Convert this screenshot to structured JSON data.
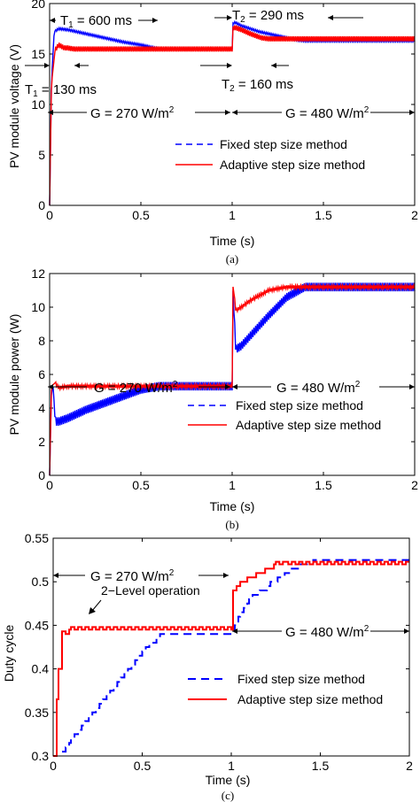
{
  "chart_data": [
    {
      "type": "line",
      "panel_caption": "(a)",
      "xlabel": "Time (s)",
      "ylabel": "PV module voltage (V)",
      "xlim": [
        0,
        2
      ],
      "ylim": [
        0,
        20
      ],
      "xticks": [
        "0",
        "0.5",
        "1",
        "1.5",
        "2"
      ],
      "yticks": [
        "0",
        "5",
        "10",
        "15",
        "20"
      ],
      "grid": false,
      "legend_position": "center-right",
      "series": [
        {
          "name": "Fixed step size method",
          "color": "#0000ff",
          "style": "dashed",
          "x": [
            0,
            0.01,
            0.025,
            0.05,
            0.1,
            0.2,
            0.3,
            0.4,
            0.5,
            0.6,
            0.7,
            0.8,
            0.9,
            1.0,
            1.005,
            1.02,
            1.05,
            1.1,
            1.15,
            1.2,
            1.25,
            1.3,
            1.35,
            1.4,
            1.5,
            1.6,
            1.7,
            1.8,
            1.9,
            2.0
          ],
          "y": [
            0,
            12,
            17.2,
            17.5,
            17.4,
            17.0,
            16.6,
            16.2,
            15.9,
            15.5,
            15.5,
            15.5,
            15.5,
            15.5,
            18.1,
            18.1,
            17.8,
            17.5,
            17.2,
            17.0,
            16.8,
            16.6,
            16.4,
            16.3,
            16.3,
            16.3,
            16.3,
            16.3,
            16.3,
            16.3
          ],
          "ripple": 0.1
        },
        {
          "name": "Adaptive step size method",
          "color": "#ff0000",
          "style": "solid",
          "x": [
            0,
            0.01,
            0.03,
            0.05,
            0.08,
            0.1,
            0.13,
            0.2,
            0.4,
            0.6,
            0.8,
            1.0,
            1.005,
            1.02,
            1.05,
            1.1,
            1.16,
            1.2,
            1.4,
            1.6,
            1.8,
            2.0
          ],
          "y": [
            0,
            12,
            15.4,
            15.9,
            15.6,
            15.6,
            15.5,
            15.5,
            15.5,
            15.5,
            15.5,
            15.5,
            17.6,
            17.6,
            17.4,
            17.0,
            16.6,
            16.5,
            16.5,
            16.5,
            16.5,
            16.5
          ],
          "ripple": 0.25
        }
      ],
      "annotations": [
        {
          "label": "T1 = 600 ms",
          "main": "T",
          "sub": "1",
          "rest": " = 600 ms"
        },
        {
          "label": "T1 = 130 ms",
          "main": "T",
          "sub": "1",
          "rest": " = 130 ms"
        },
        {
          "label": "T2 = 290 ms",
          "main": "T",
          "sub": "2",
          "rest": " = 290 ms"
        },
        {
          "label": "T2 = 160 ms",
          "main": "T",
          "sub": "2",
          "rest": " = 160 ms"
        },
        {
          "label": "G = 270 W/m2",
          "main": "G = 270 W/m",
          "sup": "2"
        },
        {
          "label": "G = 480 W/m2",
          "main": "G = 480 W/m",
          "sup": "2"
        }
      ]
    },
    {
      "type": "line",
      "panel_caption": "(b)",
      "xlabel": "Time (s)",
      "ylabel": "PV module power (W)",
      "xlim": [
        0,
        2
      ],
      "ylim": [
        0,
        12
      ],
      "xticks": [
        "0",
        "0.5",
        "1",
        "1.5",
        "2"
      ],
      "yticks": [
        "0",
        "2",
        "4",
        "6",
        "8",
        "10",
        "12"
      ],
      "grid": false,
      "legend_position": "center-right",
      "series": [
        {
          "name": "Fixed step size method",
          "color": "#0000ff",
          "style": "dashed",
          "x": [
            0,
            0.01,
            0.02,
            0.03,
            0.05,
            0.1,
            0.2,
            0.3,
            0.4,
            0.5,
            0.6,
            0.7,
            0.8,
            0.9,
            1.0,
            1.005,
            1.02,
            1.05,
            1.1,
            1.2,
            1.3,
            1.4,
            1.5,
            1.6,
            1.8,
            2.0
          ],
          "y": [
            0,
            5.0,
            5.3,
            3.2,
            3.2,
            3.4,
            3.9,
            4.3,
            4.7,
            5.1,
            5.3,
            5.3,
            5.3,
            5.3,
            5.3,
            11.0,
            7.5,
            7.7,
            8.3,
            9.5,
            10.6,
            11.2,
            11.2,
            11.2,
            11.2,
            11.2
          ],
          "ripple": 0.25
        },
        {
          "name": "Adaptive step size method",
          "color": "#ff0000",
          "style": "solid",
          "x": [
            0,
            0.01,
            0.03,
            0.05,
            0.1,
            0.2,
            0.4,
            0.6,
            0.8,
            1.0,
            1.005,
            1.02,
            1.05,
            1.1,
            1.2,
            1.3,
            1.4,
            1.6,
            1.8,
            2.0
          ],
          "y": [
            0,
            5.3,
            5.5,
            5.2,
            5.3,
            5.3,
            5.3,
            5.3,
            5.3,
            5.3,
            11.4,
            9.8,
            10.0,
            10.4,
            11.0,
            11.2,
            11.2,
            11.2,
            11.2,
            11.2
          ],
          "ripple": 0.1
        }
      ],
      "annotations": [
        {
          "label": "G = 270 W/m2",
          "main": "G = 270 W/m",
          "sup": "2"
        },
        {
          "label": "G = 480 W/m2",
          "main": "G = 480 W/m",
          "sup": "2"
        }
      ]
    },
    {
      "type": "line",
      "panel_caption": "(c)",
      "xlabel": "Time (s)",
      "ylabel": "Duty cycle",
      "xlim": [
        0,
        2
      ],
      "ylim": [
        0.3,
        0.55
      ],
      "xticks": [
        "0",
        "0.5",
        "1",
        "1.5",
        "2"
      ],
      "yticks": [
        "0.3",
        "0.35",
        "0.4",
        "0.45",
        "0.5",
        "0.55"
      ],
      "grid": false,
      "legend_position": "bottom-right",
      "series": [
        {
          "name": "Fixed step size method",
          "color": "#0000ff",
          "style": "dashed",
          "x": [
            0.05,
            0.1,
            0.2,
            0.3,
            0.4,
            0.5,
            0.6,
            0.7,
            0.8,
            0.9,
            1.0,
            1.05,
            1.1,
            1.2,
            1.3,
            1.4,
            1.5,
            1.6,
            1.8,
            2.0
          ],
          "y": [
            0.305,
            0.32,
            0.345,
            0.37,
            0.395,
            0.42,
            0.44,
            0.44,
            0.44,
            0.44,
            0.44,
            0.465,
            0.48,
            0.495,
            0.51,
            0.52,
            0.525,
            0.525,
            0.525,
            0.525
          ],
          "step": true
        },
        {
          "name": "Adaptive step size method",
          "color": "#ff0000",
          "style": "solid",
          "x": [
            0,
            0.03,
            0.05,
            0.07,
            0.1,
            0.2,
            0.4,
            0.6,
            0.8,
            1.0,
            1.01,
            1.05,
            1.1,
            1.15,
            1.2,
            1.25,
            1.3,
            1.4,
            1.6,
            1.8,
            2.0
          ],
          "y": [
            0.3,
            0.4,
            0.44,
            0.44,
            0.445,
            0.445,
            0.445,
            0.445,
            0.445,
            0.445,
            0.49,
            0.5,
            0.505,
            0.51,
            0.515,
            0.52,
            0.52,
            0.52,
            0.52,
            0.52,
            0.52
          ],
          "step": true,
          "ripple": 0.003
        }
      ],
      "annotations": [
        {
          "label": "G = 270 W/m2",
          "main": "G = 270 W/m",
          "sup": "2"
        },
        {
          "label": "G = 480 W/m2",
          "main": "G = 480 W/m",
          "sup": "2"
        },
        {
          "label": "2-Level operation",
          "main": "2−Level operation"
        }
      ]
    }
  ]
}
